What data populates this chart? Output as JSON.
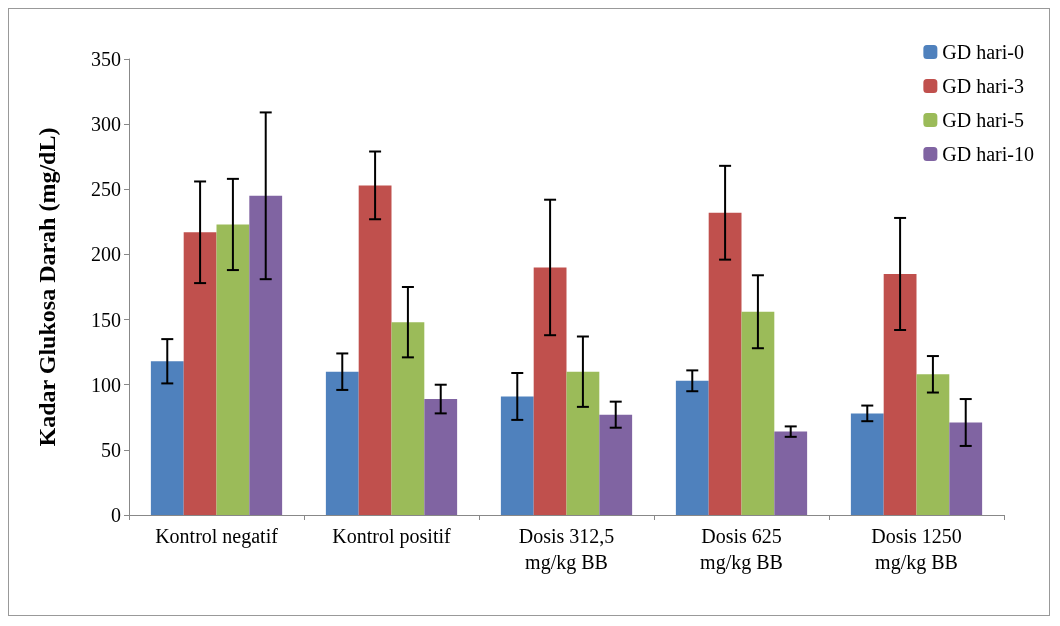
{
  "chart_data": {
    "type": "bar",
    "ylabel": "Kadar Glukosa Darah (mg/dL)",
    "categories": [
      "Kontrol negatif",
      "Kontrol positif",
      "Dosis 312,5\nmg/kg BB",
      "Dosis 625\nmg/kg BB",
      "Dosis 1250\nmg/kg BB"
    ],
    "series": [
      {
        "name": "GD hari-0",
        "color": "#4f81bd",
        "values": [
          118,
          110,
          91,
          103,
          78
        ],
        "errors": [
          17,
          14,
          18,
          8,
          6
        ]
      },
      {
        "name": "GD hari-3",
        "color": "#c0504d",
        "values": [
          217,
          253,
          190,
          232,
          185
        ],
        "errors": [
          39,
          26,
          52,
          36,
          43
        ]
      },
      {
        "name": "GD hari-5",
        "color": "#9bbb59",
        "values": [
          223,
          148,
          110,
          156,
          108
        ],
        "errors": [
          35,
          27,
          27,
          28,
          14
        ]
      },
      {
        "name": "GD hari-10",
        "color": "#8064a2",
        "values": [
          245,
          89,
          77,
          64,
          71
        ],
        "errors": [
          64,
          11,
          10,
          4,
          18
        ]
      }
    ],
    "ylim": [
      0,
      350
    ],
    "yticks": [
      0,
      50,
      100,
      150,
      200,
      250,
      300,
      350
    ],
    "grid": false,
    "legend": "top right"
  }
}
